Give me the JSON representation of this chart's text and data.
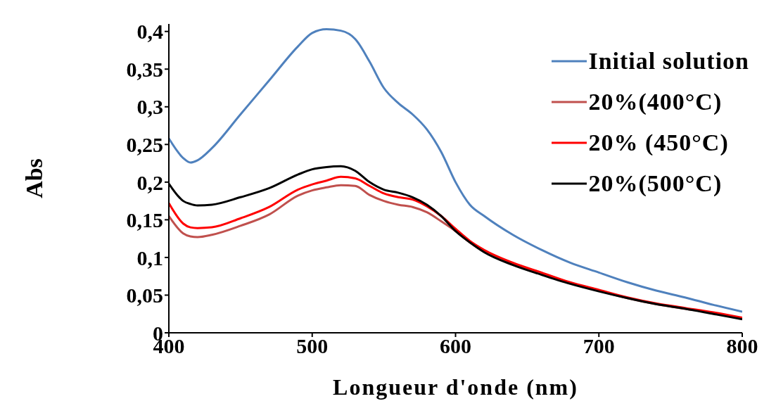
{
  "chart_data": {
    "type": "line",
    "xlabel": "Longueur d'onde (nm)",
    "ylabel": "Abs",
    "x": [
      400,
      410,
      415,
      420,
      430,
      450,
      470,
      490,
      500,
      510,
      520,
      530,
      540,
      550,
      560,
      570,
      580,
      590,
      600,
      610,
      620,
      640,
      660,
      680,
      700,
      720,
      740,
      760,
      780,
      800
    ],
    "series": [
      {
        "name": "Initial solution",
        "color": "#4f81bd",
        "values": [
          0.258,
          0.232,
          0.226,
          0.229,
          0.245,
          0.29,
          0.335,
          0.38,
          0.398,
          0.403,
          0.401,
          0.39,
          0.36,
          0.325,
          0.305,
          0.29,
          0.27,
          0.24,
          0.2,
          0.17,
          0.155,
          0.13,
          0.11,
          0.093,
          0.08,
          0.067,
          0.056,
          0.047,
          0.037,
          0.028
        ]
      },
      {
        "name": "20%(400°C)",
        "color": "#c0504d",
        "values": [
          0.155,
          0.132,
          0.128,
          0.127,
          0.13,
          0.142,
          0.157,
          0.182,
          0.189,
          0.193,
          0.196,
          0.195,
          0.183,
          0.175,
          0.17,
          0.167,
          0.16,
          0.148,
          0.135,
          0.12,
          0.108,
          0.092,
          0.079,
          0.066,
          0.056,
          0.046,
          0.038,
          0.032,
          0.026,
          0.019
        ]
      },
      {
        "name": "20% (450°C)",
        "color": "#ff0000",
        "values": [
          0.172,
          0.145,
          0.14,
          0.139,
          0.14,
          0.152,
          0.167,
          0.19,
          0.197,
          0.202,
          0.207,
          0.205,
          0.195,
          0.185,
          0.18,
          0.177,
          0.168,
          0.155,
          0.138,
          0.122,
          0.11,
          0.093,
          0.08,
          0.067,
          0.057,
          0.047,
          0.039,
          0.033,
          0.027,
          0.02
        ]
      },
      {
        "name": "20%(500°C)",
        "color": "#000000",
        "values": [
          0.198,
          0.175,
          0.171,
          0.169,
          0.17,
          0.18,
          0.192,
          0.21,
          0.217,
          0.22,
          0.221,
          0.215,
          0.2,
          0.19,
          0.186,
          0.18,
          0.17,
          0.155,
          0.135,
          0.12,
          0.107,
          0.09,
          0.077,
          0.065,
          0.055,
          0.046,
          0.038,
          0.032,
          0.025,
          0.018
        ]
      }
    ],
    "xlim": [
      400,
      800
    ],
    "xticks": [
      400,
      500,
      600,
      700,
      800
    ],
    "ylim": [
      0,
      0.41
    ],
    "yticks": [
      {
        "value": 0,
        "label": "0"
      },
      {
        "value": 0.05,
        "label": "0,05"
      },
      {
        "value": 0.1,
        "label": "0,1"
      },
      {
        "value": 0.15,
        "label": "0,15"
      },
      {
        "value": 0.2,
        "label": "0,2"
      },
      {
        "value": 0.25,
        "label": "0,25"
      },
      {
        "value": 0.3,
        "label": "0,3"
      },
      {
        "value": 0.35,
        "label": "0,35"
      },
      {
        "value": 0.4,
        "label": "0,4"
      }
    ],
    "legend": "top right",
    "grid": false,
    "marker": "none",
    "line_style": "solid"
  }
}
